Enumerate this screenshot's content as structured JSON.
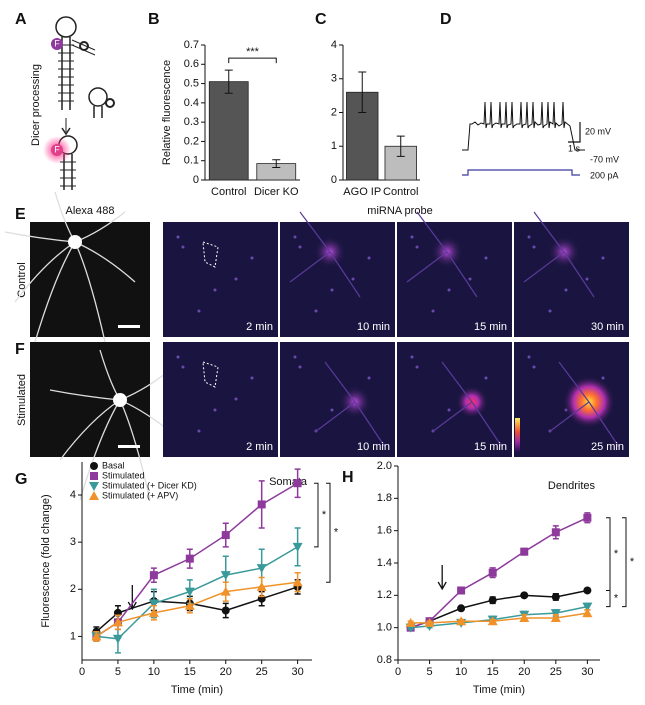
{
  "figure": {
    "A": {
      "label": "A",
      "text": "Dicer processing",
      "fluorophore": "F"
    },
    "D": {
      "label": "D",
      "scale": [
        "20 mV",
        "1 s",
        "-70 mV",
        "200 pA"
      ]
    },
    "E": {
      "label": "E",
      "left_title": "Alexa 488",
      "right_title": "miRNA probe",
      "row_label": "Control",
      "times": [
        "2 min",
        "10 min",
        "15 min",
        "30 min"
      ]
    },
    "F": {
      "label": "F",
      "row_label": "Stimulated",
      "times": [
        "2 min",
        "10 min",
        "15 min",
        "25 min"
      ]
    }
  },
  "chart_data": [
    {
      "type": "bar",
      "label": "B",
      "ylabel": "Relative fluorescence",
      "categories": [
        "Control",
        "Dicer KO"
      ],
      "values": [
        0.51,
        0.085
      ],
      "errors": [
        0.06,
        0.02
      ],
      "colors": [
        "#555555",
        "#bdbdbd"
      ],
      "ylim": [
        0,
        0.7
      ],
      "yticks": [
        0,
        0.1,
        0.2,
        0.3,
        0.4,
        0.5,
        0.6,
        0.7
      ],
      "significance": "***"
    },
    {
      "type": "bar",
      "label": "C",
      "categories": [
        "AGO IP",
        "Control"
      ],
      "values": [
        2.6,
        1.0
      ],
      "errors": [
        0.6,
        0.3
      ],
      "colors": [
        "#555555",
        "#bdbdbd"
      ],
      "ylim": [
        0,
        4
      ],
      "yticks": [
        0,
        1,
        2,
        3,
        4
      ]
    },
    {
      "type": "line",
      "label": "G",
      "annotation": "Somata",
      "xlabel": "Time (min)",
      "ylabel": "Fluorescence (fold change)",
      "legend": true,
      "x": [
        2,
        5,
        10,
        15,
        20,
        25,
        30
      ],
      "xlim": [
        0,
        32
      ],
      "xticks": [
        0,
        5,
        10,
        15,
        20,
        25,
        30
      ],
      "ylim": [
        0.5,
        4.7
      ],
      "yticks": [
        1,
        2,
        3,
        4
      ],
      "arrow_at": 7,
      "significance": [
        "*",
        "*"
      ],
      "series": [
        {
          "name": "Basal",
          "color": "#111111",
          "marker": "circle",
          "values": [
            1.1,
            1.5,
            1.75,
            1.7,
            1.55,
            1.8,
            2.05
          ],
          "errors": [
            0.1,
            0.15,
            0.2,
            0.15,
            0.15,
            0.15,
            0.15
          ]
        },
        {
          "name": "Stimulated",
          "color": "#8e3a9d",
          "marker": "square",
          "values": [
            1.0,
            1.3,
            2.3,
            2.65,
            3.15,
            3.8,
            4.25
          ],
          "errors": [
            0.1,
            0.15,
            0.15,
            0.2,
            0.25,
            0.5,
            0.3
          ]
        },
        {
          "name": "Stimulated (+ Dicer KD)",
          "color": "#3a9a9a",
          "marker": "triangle-down",
          "values": [
            1.0,
            0.95,
            1.7,
            1.95,
            2.3,
            2.45,
            2.9
          ],
          "errors": [
            0.1,
            0.3,
            0.3,
            0.25,
            0.4,
            0.4,
            0.4
          ]
        },
        {
          "name": "Stimulated (+ APV)",
          "color": "#f0922a",
          "marker": "triangle-up",
          "values": [
            1.0,
            1.3,
            1.5,
            1.65,
            1.95,
            2.05,
            2.15
          ],
          "errors": [
            0.1,
            0.15,
            0.15,
            0.15,
            0.2,
            0.2,
            0.2
          ]
        }
      ]
    },
    {
      "type": "line",
      "label": "H",
      "annotation": "Dendrites",
      "xlabel": "Time (min)",
      "legend": false,
      "x": [
        2,
        5,
        10,
        15,
        20,
        25,
        30
      ],
      "xlim": [
        0,
        32
      ],
      "xticks": [
        0,
        5,
        10,
        15,
        20,
        25,
        30
      ],
      "ylim": [
        0.8,
        2.0
      ],
      "yticks": [
        0.8,
        {
          "value": 1,
          "label": "1.0"
        },
        1.2,
        1.4,
        1.6,
        1.8,
        {
          "value": 2,
          "label": "2.0"
        }
      ],
      "arrow_at": 7,
      "significance": [
        "*",
        "*",
        "*"
      ],
      "series": [
        {
          "color": "#111111",
          "marker": "circle",
          "values": [
            1.0,
            1.04,
            1.12,
            1.17,
            1.2,
            1.19,
            1.23
          ],
          "errors": [
            0.01,
            0.01,
            0.01,
            0.02,
            0.01,
            0.02,
            0.01
          ]
        },
        {
          "color": "#8e3a9d",
          "marker": "square",
          "values": [
            1.0,
            1.04,
            1.23,
            1.34,
            1.47,
            1.59,
            1.68
          ],
          "errors": [
            0.01,
            0.01,
            0.02,
            0.03,
            0.02,
            0.04,
            0.03
          ]
        },
        {
          "color": "#3a9a9a",
          "marker": "triangle-down",
          "values": [
            1.0,
            1.01,
            1.03,
            1.05,
            1.08,
            1.09,
            1.13
          ],
          "errors": [
            0.01,
            0.01,
            0.01,
            0.02,
            0.02,
            0.02,
            0.02
          ]
        },
        {
          "color": "#f0922a",
          "marker": "triangle-up",
          "values": [
            1.03,
            1.03,
            1.04,
            1.04,
            1.06,
            1.06,
            1.09
          ],
          "errors": [
            0.01,
            0.01,
            0.01,
            0.01,
            0.02,
            0.02,
            0.02
          ]
        }
      ]
    }
  ]
}
